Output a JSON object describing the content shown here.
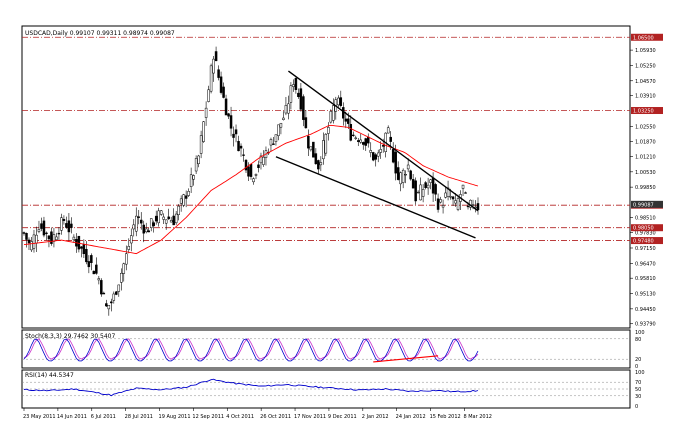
{
  "header": {
    "symbol_info": "USDCAD,Daily  0.99107 0.99311 0.98974 0.99087",
    "stoch_info": "Stoch(8,3,3) 29.7462 30.5407",
    "rsi_info": "RSI(14) 44.5347"
  },
  "colors": {
    "candle": "#000000",
    "ma": "#ff0000",
    "stoch_main": "#0000cc",
    "stoch_signal": "#cc33cc",
    "rsi": "#0000cc",
    "trendline": "#000000",
    "divergence": "#ff0000",
    "level_line": "#b22222",
    "level_box": "#b22222",
    "price_box": "#333333"
  },
  "chart_data": [
    {
      "type": "candlestick",
      "name": "USDCAD Daily",
      "ylim": [
        0.936,
        1.07
      ],
      "y_ticks": [
        {
          "value": 1.0593,
          "label": "1.05930"
        },
        {
          "value": 1.0525,
          "label": "1.05250"
        },
        {
          "value": 1.0457,
          "label": "1.04570"
        },
        {
          "value": 1.0391,
          "label": "1.03910"
        },
        {
          "value": 1.0255,
          "label": "1.02550"
        },
        {
          "value": 1.0187,
          "label": "1.01870"
        },
        {
          "value": 1.0121,
          "label": "1.01210"
        },
        {
          "value": 1.0053,
          "label": "1.00530"
        },
        {
          "value": 0.9985,
          "label": "0.99850"
        },
        {
          "value": 0.9851,
          "label": "0.98510"
        },
        {
          "value": 0.9783,
          "label": "0.97830"
        },
        {
          "value": 0.9715,
          "label": "0.97150"
        },
        {
          "value": 0.9647,
          "label": "0.96470"
        },
        {
          "value": 0.9581,
          "label": "0.95810"
        },
        {
          "value": 0.9513,
          "label": "0.95130"
        },
        {
          "value": 0.9445,
          "label": "0.94450"
        },
        {
          "value": 0.9379,
          "label": "0.93790"
        }
      ],
      "levels": [
        {
          "value": 1.065,
          "label": "1.06500"
        },
        {
          "value": 1.0325,
          "label": "1.03250"
        },
        {
          "value": 0.9905,
          "label": "0.99050"
        },
        {
          "value": 0.9805,
          "label": "0.98050"
        },
        {
          "value": 0.9748,
          "label": "0.97480"
        }
      ],
      "current_price": {
        "value": 0.99087,
        "label": "0.99087"
      },
      "x_labels": [
        "23 May 2011",
        "14 Jun 2011",
        "6 Jul 2011",
        "28 Jul 2011",
        "19 Aug 2011",
        "12 Sep 2011",
        "4 Oct 2011",
        "26 Oct 2011",
        "17 Nov 2011",
        "9 Dec 2011",
        "2 Jan 2012",
        "24 Jan 2012",
        "15 Feb 2012",
        "8 Mar 2012"
      ],
      "price_path": [
        [
          0,
          0.978
        ],
        [
          5,
          0.972
        ],
        [
          12,
          0.982
        ],
        [
          22,
          0.975
        ],
        [
          32,
          0.984
        ],
        [
          42,
          0.974
        ],
        [
          52,
          0.966
        ],
        [
          60,
          0.958
        ],
        [
          66,
          0.945
        ],
        [
          71,
          0.948
        ],
        [
          76,
          0.957
        ],
        [
          82,
          0.968
        ],
        [
          90,
          0.986
        ],
        [
          98,
          0.979
        ],
        [
          108,
          0.986
        ],
        [
          120,
          0.984
        ],
        [
          132,
          0.998
        ],
        [
          140,
          1.012
        ],
        [
          147,
          1.038
        ],
        [
          152,
          1.058
        ],
        [
          158,
          1.042
        ],
        [
          166,
          1.025
        ],
        [
          174,
          1.015
        ],
        [
          182,
          1.003
        ],
        [
          190,
          1.01
        ],
        [
          200,
          1.02
        ],
        [
          210,
          1.032
        ],
        [
          216,
          1.046
        ],
        [
          222,
          1.036
        ],
        [
          228,
          1.018
        ],
        [
          236,
          1.008
        ],
        [
          244,
          1.025
        ],
        [
          250,
          1.038
        ],
        [
          256,
          1.03
        ],
        [
          262,
          1.022
        ],
        [
          272,
          1.02
        ],
        [
          282,
          1.01
        ],
        [
          292,
          1.022
        ],
        [
          300,
          1.002
        ],
        [
          308,
          1.008
        ],
        [
          314,
          0.994
        ],
        [
          320,
          0.998
        ],
        [
          326,
          1.0
        ],
        [
          333,
          0.99
        ],
        [
          340,
          0.996
        ],
        [
          346,
          0.99
        ],
        [
          352,
          0.998
        ],
        [
          356,
          0.988
        ],
        [
          360,
          0.992
        ],
        [
          364,
          0.99
        ]
      ],
      "ma_path": [
        [
          0,
          0.973
        ],
        [
          30,
          0.975
        ],
        [
          60,
          0.972
        ],
        [
          90,
          0.969
        ],
        [
          110,
          0.975
        ],
        [
          130,
          0.985
        ],
        [
          150,
          0.997
        ],
        [
          170,
          1.004
        ],
        [
          190,
          1.012
        ],
        [
          210,
          1.018
        ],
        [
          230,
          1.022
        ],
        [
          245,
          1.026
        ],
        [
          260,
          1.025
        ],
        [
          275,
          1.021
        ],
        [
          290,
          1.017
        ],
        [
          305,
          1.014
        ],
        [
          320,
          1.008
        ],
        [
          340,
          1.003
        ],
        [
          364,
          0.999
        ]
      ],
      "trendlines": [
        {
          "role": "upper",
          "from": [
            212,
            1.05
          ],
          "to": [
            364,
            0.988
          ]
        },
        {
          "role": "lower",
          "from": [
            202,
            1.012
          ],
          "to": [
            362,
            0.976
          ]
        }
      ]
    },
    {
      "type": "line",
      "name": "Stoch(8,3,3)",
      "ylim": [
        0,
        100
      ],
      "y_ticks": [
        {
          "value": 100,
          "label": "100"
        },
        {
          "value": 80,
          "label": "80"
        },
        {
          "value": 20,
          "label": "20"
        },
        {
          "value": 0,
          "label": "0"
        }
      ],
      "reference_lines": [
        80,
        20
      ],
      "main_cycle": [
        20,
        35,
        62,
        84,
        70,
        45,
        22,
        12
      ],
      "signal_cycle": [
        25,
        28,
        48,
        74,
        80,
        62,
        36,
        18
      ],
      "divergence_line": {
        "from": [
          280,
          12
        ],
        "to": [
          332,
          30
        ]
      }
    },
    {
      "type": "line",
      "name": "RSI(14)",
      "ylim": [
        0,
        100
      ],
      "y_ticks": [
        {
          "value": 100,
          "label": "100"
        },
        {
          "value": 70,
          "label": "70"
        },
        {
          "value": 50,
          "label": "50"
        },
        {
          "value": 30,
          "label": "30"
        },
        {
          "value": 0,
          "label": "0"
        }
      ],
      "reference_lines": [
        70,
        50,
        30
      ],
      "values_path": [
        [
          0,
          48
        ],
        [
          20,
          45
        ],
        [
          40,
          50
        ],
        [
          60,
          38
        ],
        [
          70,
          32
        ],
        [
          90,
          52
        ],
        [
          110,
          48
        ],
        [
          130,
          55
        ],
        [
          150,
          78
        ],
        [
          170,
          66
        ],
        [
          190,
          58
        ],
        [
          210,
          63
        ],
        [
          230,
          57
        ],
        [
          250,
          52
        ],
        [
          270,
          47
        ],
        [
          290,
          50
        ],
        [
          310,
          43
        ],
        [
          330,
          46
        ],
        [
          345,
          42
        ],
        [
          364,
          44.53
        ]
      ]
    }
  ]
}
